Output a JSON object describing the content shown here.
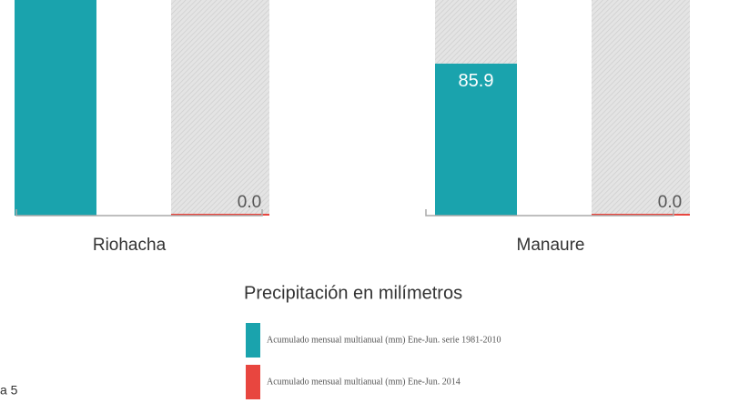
{
  "chart_data": {
    "type": "bar",
    "categories": [
      "Riohacha",
      "Manaure"
    ],
    "series": [
      {
        "name": "Acumulado mensual multianual (mm) Ene-Jun. serie 1981-2010",
        "color": "#1aa3ad",
        "values": [
          125,
          85.9
        ],
        "value_labels": [
          null,
          "85.9"
        ]
      },
      {
        "name": "Acumulado mensual multianual (mm) Ene-Jun. 2014",
        "color": "#e8463f",
        "values": [
          0,
          0
        ],
        "value_labels": [
          "0.0",
          "0.0"
        ]
      }
    ],
    "legend_title": "Precipitación en milímetros",
    "footnote": "a 5"
  }
}
